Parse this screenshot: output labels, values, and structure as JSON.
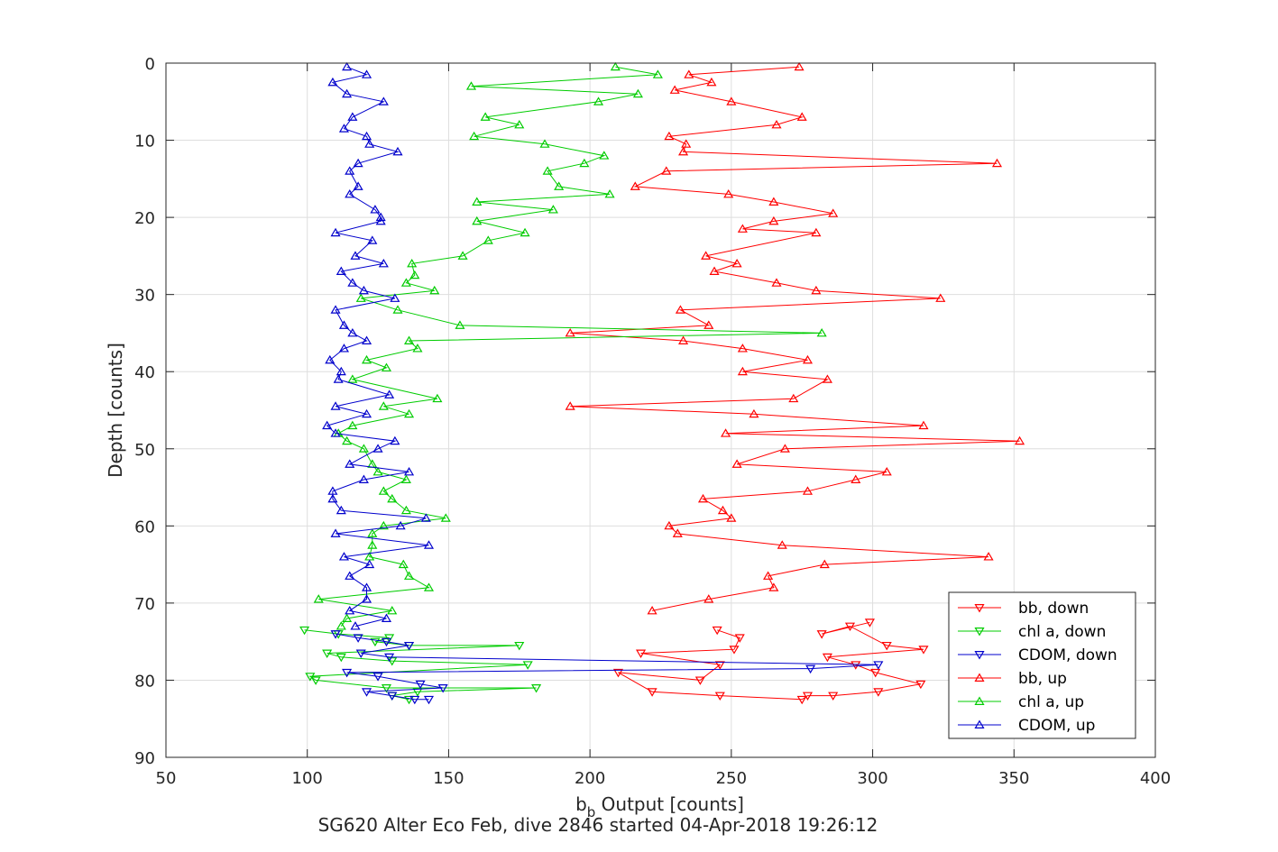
{
  "chart_data": {
    "type": "line",
    "title": "",
    "xlabel_main": "b",
    "xlabel_sub": "b",
    "xlabel_rest": " Output [counts]",
    "ylabel": "Depth [counts]",
    "caption": "SG620 Alter Eco Feb, dive 2846 started 04-Apr-2018 19:26:12",
    "xlim": [
      50,
      400
    ],
    "ylim": [
      0,
      90
    ],
    "y_reversed": true,
    "grid": true,
    "legend_position": "lower-right",
    "xticks": [
      50,
      100,
      150,
      200,
      250,
      300,
      350,
      400
    ],
    "yticks": [
      0,
      10,
      20,
      30,
      40,
      50,
      60,
      70,
      80,
      90
    ],
    "series": [
      {
        "name": "bb, down",
        "color": "#ff0000",
        "marker": "triangle-down",
        "points": [
          [
            299,
            72.5
          ],
          [
            282,
            74
          ],
          [
            292,
            73
          ],
          [
            305,
            75.5
          ],
          [
            318,
            76
          ],
          [
            284,
            77
          ],
          [
            294,
            78
          ],
          [
            301,
            79
          ],
          [
            317,
            80.5
          ],
          [
            302,
            81.5
          ],
          [
            286,
            82
          ],
          [
            277,
            82
          ],
          [
            275,
            82.5
          ],
          [
            246,
            82
          ],
          [
            222,
            81.5
          ],
          [
            210,
            79
          ],
          [
            239,
            80
          ],
          [
            246,
            78
          ],
          [
            218,
            76.5
          ],
          [
            251,
            76
          ],
          [
            253,
            74.5
          ],
          [
            245,
            73.5
          ]
        ]
      },
      {
        "name": "chl a, down",
        "color": "#00cc00",
        "marker": "triangle-down",
        "points": [
          [
            99,
            73.5
          ],
          [
            111,
            74
          ],
          [
            129,
            74.5
          ],
          [
            124,
            75
          ],
          [
            136,
            75.5
          ],
          [
            175,
            75.5
          ],
          [
            107,
            76.5
          ],
          [
            112,
            77
          ],
          [
            130,
            77.5
          ],
          [
            178,
            78
          ],
          [
            101,
            79.5
          ],
          [
            103,
            80
          ],
          [
            128,
            81
          ],
          [
            181,
            81
          ],
          [
            139,
            81.5
          ],
          [
            130,
            82
          ],
          [
            136,
            82.5
          ]
        ]
      },
      {
        "name": "CDOM, down",
        "color": "#0000cc",
        "marker": "triangle-down",
        "points": [
          [
            110,
            74
          ],
          [
            118,
            74.5
          ],
          [
            128,
            75
          ],
          [
            136,
            75.5
          ],
          [
            119,
            76.5
          ],
          [
            129,
            77
          ],
          [
            302,
            78
          ],
          [
            278,
            78.5
          ],
          [
            114,
            79
          ],
          [
            125,
            79.5
          ],
          [
            140,
            80.5
          ],
          [
            148,
            81
          ],
          [
            121,
            81.5
          ],
          [
            130,
            82
          ],
          [
            138,
            82.5
          ],
          [
            143,
            82.5
          ]
        ]
      },
      {
        "name": "bb, up",
        "color": "#ff0000",
        "marker": "triangle-up",
        "points": [
          [
            274,
            0.5
          ],
          [
            235,
            1.5
          ],
          [
            243,
            2.5
          ],
          [
            230,
            3.5
          ],
          [
            250,
            5
          ],
          [
            275,
            7
          ],
          [
            266,
            8
          ],
          [
            228,
            9.5
          ],
          [
            234,
            10.5
          ],
          [
            233,
            11.5
          ],
          [
            344,
            13
          ],
          [
            227,
            14
          ],
          [
            216,
            16
          ],
          [
            249,
            17
          ],
          [
            265,
            18
          ],
          [
            286,
            19.5
          ],
          [
            265,
            20.5
          ],
          [
            254,
            21.5
          ],
          [
            280,
            22
          ],
          [
            241,
            25
          ],
          [
            252,
            26
          ],
          [
            244,
            27
          ],
          [
            266,
            28.5
          ],
          [
            280,
            29.5
          ],
          [
            324,
            30.5
          ],
          [
            232,
            32
          ],
          [
            242,
            34
          ],
          [
            193,
            35
          ],
          [
            233,
            36
          ],
          [
            254,
            37
          ],
          [
            277,
            38.5
          ],
          [
            254,
            40
          ],
          [
            284,
            41
          ],
          [
            272,
            43.5
          ],
          [
            193,
            44.5
          ],
          [
            258,
            45.5
          ],
          [
            318,
            47
          ],
          [
            248,
            48
          ],
          [
            352,
            49
          ],
          [
            269,
            50
          ],
          [
            252,
            52
          ],
          [
            305,
            53
          ],
          [
            294,
            54
          ],
          [
            277,
            55.5
          ],
          [
            240,
            56.5
          ],
          [
            247,
            58
          ],
          [
            250,
            59
          ],
          [
            228,
            60
          ],
          [
            231,
            61
          ],
          [
            268,
            62.5
          ],
          [
            341,
            64
          ],
          [
            283,
            65
          ],
          [
            263,
            66.5
          ],
          [
            265,
            68
          ],
          [
            242,
            69.5
          ],
          [
            222,
            71
          ]
        ]
      },
      {
        "name": "chl a, up",
        "color": "#00cc00",
        "marker": "triangle-up",
        "points": [
          [
            209,
            0.5
          ],
          [
            224,
            1.5
          ],
          [
            158,
            3
          ],
          [
            217,
            4
          ],
          [
            203,
            5
          ],
          [
            163,
            7
          ],
          [
            175,
            8
          ],
          [
            159,
            9.5
          ],
          [
            184,
            10.5
          ],
          [
            205,
            12
          ],
          [
            198,
            13
          ],
          [
            185,
            14
          ],
          [
            189,
            16
          ],
          [
            207,
            17
          ],
          [
            160,
            18
          ],
          [
            187,
            19
          ],
          [
            160,
            20.5
          ],
          [
            177,
            22
          ],
          [
            164,
            23
          ],
          [
            155,
            25
          ],
          [
            137,
            26
          ],
          [
            138,
            27.5
          ],
          [
            135,
            28.5
          ],
          [
            145,
            29.5
          ],
          [
            119,
            30.5
          ],
          [
            132,
            32
          ],
          [
            154,
            34
          ],
          [
            282,
            35
          ],
          [
            136,
            36
          ],
          [
            139,
            37
          ],
          [
            121,
            38.5
          ],
          [
            128,
            39.5
          ],
          [
            116,
            41
          ],
          [
            146,
            43.5
          ],
          [
            127,
            44.5
          ],
          [
            136,
            45.5
          ],
          [
            116,
            47
          ],
          [
            111,
            48
          ],
          [
            114,
            49
          ],
          [
            120,
            50
          ],
          [
            123,
            52
          ],
          [
            125,
            53
          ],
          [
            135,
            54
          ],
          [
            127,
            55.5
          ],
          [
            130,
            56.5
          ],
          [
            135,
            58
          ],
          [
            149,
            59
          ],
          [
            127,
            60
          ],
          [
            123,
            61
          ],
          [
            123,
            62.5
          ],
          [
            122,
            64
          ],
          [
            134,
            65
          ],
          [
            136,
            66.5
          ],
          [
            143,
            68
          ],
          [
            104,
            69.5
          ],
          [
            130,
            71
          ],
          [
            114,
            72
          ],
          [
            112,
            73
          ]
        ]
      },
      {
        "name": "CDOM, up",
        "color": "#0000cc",
        "marker": "triangle-up",
        "points": [
          [
            114,
            0.5
          ],
          [
            121,
            1.5
          ],
          [
            109,
            2.5
          ],
          [
            114,
            4
          ],
          [
            127,
            5
          ],
          [
            116,
            7
          ],
          [
            113,
            8.5
          ],
          [
            121,
            9.5
          ],
          [
            122,
            10.5
          ],
          [
            132,
            11.5
          ],
          [
            118,
            13
          ],
          [
            115,
            14
          ],
          [
            118,
            16
          ],
          [
            115,
            17
          ],
          [
            124,
            19
          ],
          [
            126,
            20
          ],
          [
            126,
            20.5
          ],
          [
            110,
            22
          ],
          [
            123,
            23
          ],
          [
            117,
            25
          ],
          [
            127,
            26
          ],
          [
            112,
            27
          ],
          [
            116,
            28.5
          ],
          [
            120,
            29.5
          ],
          [
            131,
            30.5
          ],
          [
            110,
            32
          ],
          [
            113,
            34
          ],
          [
            116,
            35
          ],
          [
            121,
            36
          ],
          [
            113,
            37
          ],
          [
            108,
            38.5
          ],
          [
            112,
            40
          ],
          [
            111,
            41
          ],
          [
            129,
            43
          ],
          [
            110,
            44.5
          ],
          [
            121,
            45.5
          ],
          [
            107,
            47
          ],
          [
            110,
            48
          ],
          [
            131,
            49
          ],
          [
            125,
            50
          ],
          [
            115,
            52
          ],
          [
            136,
            53
          ],
          [
            120,
            54
          ],
          [
            109,
            55.5
          ],
          [
            109,
            56.5
          ],
          [
            112,
            58
          ],
          [
            142,
            59
          ],
          [
            133,
            60
          ],
          [
            110,
            61
          ],
          [
            143,
            62.5
          ],
          [
            113,
            64
          ],
          [
            122,
            65
          ],
          [
            115,
            66.5
          ],
          [
            121,
            68
          ],
          [
            121,
            69.5
          ],
          [
            115,
            71
          ],
          [
            128,
            72
          ],
          [
            117,
            73
          ]
        ]
      }
    ]
  }
}
